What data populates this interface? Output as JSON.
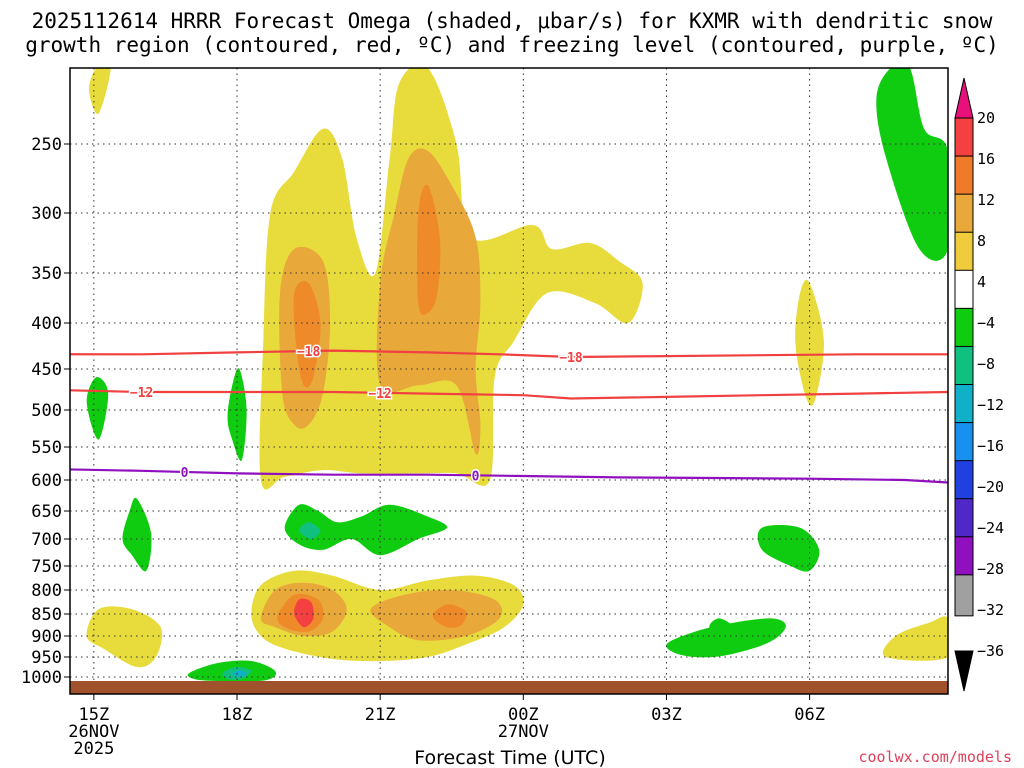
{
  "chart_data": {
    "type": "heatmap",
    "title_line1": "2025112614 HRRR Forecast Omega (shaded, μbar/s) for KXMR with dendritic snow",
    "title_line2": "growth region (contoured, red, ºC) and freezing level (contoured, purple, ºC)",
    "xlabel": "Forecast Time (UTC)",
    "credit": "coolwx.com/models",
    "x_range_hours": [
      14.5,
      32.9
    ],
    "x_ticks": [
      {
        "hour": 15,
        "label": "15Z",
        "sub1": "26NOV",
        "sub2": "2025"
      },
      {
        "hour": 18,
        "label": "18Z",
        "sub1": "",
        "sub2": ""
      },
      {
        "hour": 21,
        "label": "21Z",
        "sub1": "",
        "sub2": ""
      },
      {
        "hour": 24,
        "label": "00Z",
        "sub1": "27NOV",
        "sub2": ""
      },
      {
        "hour": 27,
        "label": "03Z",
        "sub1": "",
        "sub2": ""
      },
      {
        "hour": 30,
        "label": "06Z",
        "sub1": "",
        "sub2": ""
      }
    ],
    "y_range_hpa": [
      200,
      1020
    ],
    "y_ticks": [
      250,
      300,
      350,
      400,
      450,
      500,
      550,
      600,
      650,
      700,
      750,
      800,
      850,
      900,
      950,
      1000
    ],
    "ground_level_hpa": 1010,
    "colorbar": {
      "labels": [
        "20",
        "16",
        "12",
        "8",
        "4",
        "−4",
        "−8",
        "−12",
        "−16",
        "−20",
        "−24",
        "−28",
        "−32",
        "−36"
      ],
      "colors": [
        "#ff1a8c",
        "#f44040",
        "#ee8a2a",
        "#e8a83a",
        "#f0c832",
        "#e8dc3c",
        "#ffffff",
        "#10cc10",
        "#10c080",
        "#10b0c8",
        "#1890f0",
        "#2050e0",
        "#5028c8",
        "#9010c0",
        "#a0a0a0",
        "#000000"
      ],
      "palette_note": "top arrow, 20-16, 16-12, 12-8, 8-4(lower), 4-8? ordering top to bottom"
    },
    "omega_regions": [
      {
        "level": 4,
        "color": "#e8dc3c",
        "points": [
          [
            18.5,
            600
          ],
          [
            18.55,
            420
          ],
          [
            18.7,
            300
          ],
          [
            19.2,
            270
          ],
          [
            19.8,
            240
          ],
          [
            20.2,
            260
          ],
          [
            20.5,
            320
          ],
          [
            20.9,
            350
          ],
          [
            21.2,
            260
          ],
          [
            21.4,
            210
          ],
          [
            22.0,
            200
          ],
          [
            22.6,
            250
          ],
          [
            22.9,
            320
          ],
          [
            24.2,
            310
          ],
          [
            24.6,
            330
          ],
          [
            25.4,
            325
          ],
          [
            26.0,
            340
          ],
          [
            26.5,
            360
          ],
          [
            26.2,
            400
          ],
          [
            25.5,
            380
          ],
          [
            24.5,
            370
          ],
          [
            23.8,
            420
          ],
          [
            23.4,
            460
          ],
          [
            23.3,
            600
          ],
          [
            22.6,
            590
          ],
          [
            21.8,
            590
          ],
          [
            20.6,
            590
          ],
          [
            19.8,
            585
          ],
          [
            19.0,
            595
          ]
        ]
      },
      {
        "level": 8,
        "color": "#e8a83a",
        "points": [
          [
            18.95,
            480
          ],
          [
            18.9,
            370
          ],
          [
            19.2,
            330
          ],
          [
            19.8,
            340
          ],
          [
            19.95,
            400
          ],
          [
            19.8,
            480
          ],
          [
            19.5,
            520
          ],
          [
            19.2,
            520
          ]
        ]
      },
      {
        "level": 8,
        "color": "#e8a83a",
        "points": [
          [
            21.0,
            470
          ],
          [
            21.0,
            360
          ],
          [
            21.3,
            300
          ],
          [
            21.6,
            260
          ],
          [
            22.0,
            255
          ],
          [
            22.5,
            280
          ],
          [
            23.0,
            320
          ],
          [
            23.1,
            380
          ],
          [
            23.0,
            450
          ],
          [
            23.1,
            520
          ],
          [
            23.0,
            560
          ],
          [
            22.6,
            470
          ],
          [
            21.8,
            470
          ]
        ]
      },
      {
        "level": 12,
        "color": "#ee8a2a",
        "points": [
          [
            19.25,
            430
          ],
          [
            19.2,
            370
          ],
          [
            19.5,
            360
          ],
          [
            19.75,
            400
          ],
          [
            19.6,
            460
          ],
          [
            19.4,
            470
          ]
        ]
      },
      {
        "level": 12,
        "color": "#ee8a2a",
        "points": [
          [
            21.8,
            380
          ],
          [
            21.8,
            300
          ],
          [
            22.0,
            280
          ],
          [
            22.25,
            320
          ],
          [
            22.2,
            370
          ],
          [
            22.0,
            390
          ]
        ]
      },
      {
        "level": 4,
        "color": "#e8dc3c",
        "points": [
          [
            29.7,
            420
          ],
          [
            29.8,
            370
          ],
          [
            30.0,
            360
          ],
          [
            30.3,
            420
          ],
          [
            30.1,
            490
          ],
          [
            29.9,
            480
          ]
        ]
      },
      {
        "level": 4,
        "color": "#e8dc3c",
        "points": [
          [
            14.9,
            215
          ],
          [
            15.05,
            200
          ],
          [
            15.35,
            200
          ],
          [
            15.1,
            230
          ]
        ]
      },
      {
        "level": 4,
        "color": "#e8dc3c",
        "points": [
          [
            18.3,
            850
          ],
          [
            18.5,
            790
          ],
          [
            19.2,
            760
          ],
          [
            20.0,
            770
          ],
          [
            21.0,
            800
          ],
          [
            22.0,
            780
          ],
          [
            23.0,
            770
          ],
          [
            23.8,
            790
          ],
          [
            24.0,
            830
          ],
          [
            23.6,
            880
          ],
          [
            22.8,
            920
          ],
          [
            22.0,
            950
          ],
          [
            21.0,
            960
          ],
          [
            20.0,
            955
          ],
          [
            19.0,
            930
          ],
          [
            18.5,
            900
          ]
        ]
      },
      {
        "level": 8,
        "color": "#e8a83a",
        "points": [
          [
            18.5,
            860
          ],
          [
            18.8,
            800
          ],
          [
            19.4,
            785
          ],
          [
            20.0,
            800
          ],
          [
            20.3,
            840
          ],
          [
            20.0,
            890
          ],
          [
            19.4,
            900
          ],
          [
            18.8,
            880
          ]
        ]
      },
      {
        "level": 8,
        "color": "#e8a83a",
        "points": [
          [
            20.8,
            840
          ],
          [
            21.5,
            810
          ],
          [
            22.5,
            800
          ],
          [
            23.4,
            820
          ],
          [
            23.5,
            860
          ],
          [
            22.8,
            900
          ],
          [
            21.8,
            910
          ],
          [
            21.2,
            880
          ]
        ]
      },
      {
        "level": 12,
        "color": "#ee8a2a",
        "points": [
          [
            18.85,
            855
          ],
          [
            19.2,
            810
          ],
          [
            19.7,
            820
          ],
          [
            19.8,
            860
          ],
          [
            19.5,
            890
          ],
          [
            19.0,
            880
          ]
        ]
      },
      {
        "level": 12,
        "color": "#ee8a2a",
        "points": [
          [
            22.1,
            855
          ],
          [
            22.4,
            830
          ],
          [
            22.8,
            845
          ],
          [
            22.7,
            875
          ],
          [
            22.4,
            880
          ]
        ]
      },
      {
        "level": 16,
        "color": "#f44040",
        "points": [
          [
            19.2,
            850
          ],
          [
            19.3,
            820
          ],
          [
            19.55,
            825
          ],
          [
            19.6,
            860
          ],
          [
            19.4,
            880
          ]
        ]
      },
      {
        "level": 4,
        "color": "#e8dc3c",
        "points": [
          [
            14.85,
            900
          ],
          [
            15.1,
            840
          ],
          [
            15.8,
            840
          ],
          [
            16.4,
            880
          ],
          [
            16.3,
            950
          ],
          [
            15.9,
            975
          ],
          [
            15.2,
            930
          ]
        ]
      },
      {
        "level": 4,
        "color": "#e8dc3c",
        "points": [
          [
            31.6,
            950
          ],
          [
            31.8,
            900
          ],
          [
            32.5,
            870
          ],
          [
            32.9,
            860
          ],
          [
            32.9,
            950
          ]
        ]
      },
      {
        "level": -4,
        "color": "#10cc10",
        "points": [
          [
            14.85,
            490
          ],
          [
            15.05,
            460
          ],
          [
            15.3,
            480
          ],
          [
            15.1,
            540
          ]
        ]
      },
      {
        "level": -4,
        "color": "#10cc10",
        "points": [
          [
            17.8,
            510
          ],
          [
            17.9,
            470
          ],
          [
            18.05,
            450
          ],
          [
            18.2,
            500
          ],
          [
            18.1,
            570
          ],
          [
            17.9,
            540
          ]
        ]
      },
      {
        "level": -4,
        "color": "#10cc10",
        "points": [
          [
            15.6,
            700
          ],
          [
            15.75,
            650
          ],
          [
            15.9,
            630
          ],
          [
            16.2,
            690
          ],
          [
            16.1,
            760
          ],
          [
            15.8,
            730
          ]
        ]
      },
      {
        "level": -4,
        "color": "#10cc10",
        "points": [
          [
            19.0,
            680
          ],
          [
            19.3,
            640
          ],
          [
            19.7,
            650
          ],
          [
            20.1,
            670
          ],
          [
            20.6,
            660
          ],
          [
            21.2,
            640
          ],
          [
            22.0,
            660
          ],
          [
            22.4,
            680
          ],
          [
            21.8,
            700
          ],
          [
            21.0,
            730
          ],
          [
            20.4,
            700
          ],
          [
            19.8,
            720
          ],
          [
            19.3,
            710
          ]
        ]
      },
      {
        "level": -8,
        "color": "#10c080",
        "points": [
          [
            19.3,
            685
          ],
          [
            19.5,
            670
          ],
          [
            19.75,
            685
          ],
          [
            19.55,
            700
          ]
        ]
      },
      {
        "level": -4,
        "color": "#10cc10",
        "points": [
          [
            17.0,
            990
          ],
          [
            17.6,
            965
          ],
          [
            18.3,
            960
          ],
          [
            18.8,
            985
          ],
          [
            18.6,
            1008
          ],
          [
            17.6,
            1010
          ],
          [
            17.1,
            1005
          ]
        ]
      },
      {
        "level": -8,
        "color": "#10c080",
        "points": [
          [
            17.7,
            990
          ],
          [
            18.0,
            975
          ],
          [
            18.3,
            985
          ],
          [
            18.1,
            1005
          ],
          [
            17.8,
            1005
          ]
        ]
      },
      {
        "level": -12,
        "color": "#10b0c8",
        "points": [
          [
            17.9,
            992
          ],
          [
            18.05,
            983
          ],
          [
            18.2,
            992
          ],
          [
            18.05,
            1000
          ]
        ]
      },
      {
        "level": -4,
        "color": "#10cc10",
        "points": [
          [
            27.9,
            880
          ],
          [
            28.1,
            860
          ],
          [
            28.4,
            880
          ],
          [
            28.2,
            905
          ]
        ]
      },
      {
        "level": -4,
        "color": "#10cc10",
        "points": [
          [
            27.0,
            920
          ],
          [
            27.6,
            890
          ],
          [
            28.4,
            870
          ],
          [
            29.2,
            860
          ],
          [
            29.5,
            875
          ],
          [
            29.3,
            905
          ],
          [
            28.8,
            930
          ],
          [
            28.0,
            950
          ],
          [
            27.3,
            945
          ]
        ]
      },
      {
        "level": -4,
        "color": "#10cc10",
        "points": [
          [
            29.0,
            680
          ],
          [
            29.8,
            680
          ],
          [
            30.2,
            720
          ],
          [
            30.0,
            760
          ],
          [
            29.6,
            750
          ],
          [
            29.0,
            720
          ]
        ]
      },
      {
        "level": -4,
        "color": "#10cc10",
        "points": [
          [
            31.4,
            220
          ],
          [
            31.7,
            190
          ],
          [
            32.1,
            200
          ],
          [
            32.4,
            240
          ],
          [
            32.9,
            255
          ],
          [
            32.9,
            330
          ],
          [
            32.3,
            330
          ],
          [
            31.6,
            260
          ]
        ]
      }
    ],
    "contours": [
      {
        "name": "dgz-minus18",
        "color": "#f04040",
        "label": "−18",
        "label_hours": [
          19.5,
          25.0
        ],
        "points": [
          [
            14.5,
            434
          ],
          [
            16.0,
            434
          ],
          [
            18.0,
            432
          ],
          [
            20.0,
            430
          ],
          [
            22.0,
            432
          ],
          [
            23.5,
            434
          ],
          [
            25.0,
            437
          ],
          [
            27.0,
            436
          ],
          [
            29.0,
            435
          ],
          [
            31.0,
            434
          ],
          [
            32.9,
            434
          ]
        ]
      },
      {
        "name": "dgz-minus12",
        "color": "#f04040",
        "label": "−12",
        "label_hours": [
          16.0,
          21.0
        ],
        "points": [
          [
            14.5,
            476
          ],
          [
            16.0,
            478
          ],
          [
            18.0,
            478
          ],
          [
            20.0,
            478
          ],
          [
            22.0,
            480
          ],
          [
            24.0,
            482
          ],
          [
            25.0,
            486
          ],
          [
            27.0,
            484
          ],
          [
            29.0,
            482
          ],
          [
            31.0,
            480
          ],
          [
            32.9,
            478
          ]
        ]
      },
      {
        "name": "freezing-level-0",
        "color": "#9010c0",
        "label": "0",
        "label_hours": [
          16.9,
          23.0
        ],
        "points": [
          [
            14.5,
            584
          ],
          [
            16.0,
            586
          ],
          [
            18.0,
            590
          ],
          [
            20.0,
            592
          ],
          [
            22.0,
            592
          ],
          [
            24.0,
            594
          ],
          [
            26.0,
            596
          ],
          [
            28.0,
            597
          ],
          [
            30.0,
            598
          ],
          [
            32.0,
            600
          ],
          [
            32.9,
            604
          ]
        ]
      }
    ]
  }
}
